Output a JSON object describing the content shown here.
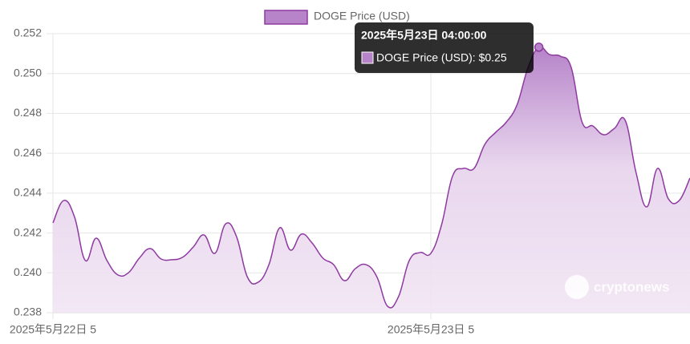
{
  "chart_data": {
    "type": "line",
    "categories": [
      "2025年5月22日 5",
      null,
      null,
      null,
      null,
      null,
      null,
      null,
      null,
      null,
      null,
      null,
      null,
      null,
      null,
      null,
      null,
      null,
      null,
      null,
      null,
      null,
      null,
      null,
      null,
      null,
      null,
      null,
      null,
      null,
      null,
      null,
      null,
      null,
      null,
      "2025年5月23日 5",
      null,
      null,
      null,
      null,
      null,
      null,
      null,
      null,
      null,
      null,
      null,
      null,
      null,
      null,
      null,
      null,
      null,
      null,
      null,
      null,
      null,
      null,
      null,
      null
    ],
    "series": [
      {
        "name": "DOGE Price (USD)",
        "color": "#8e3aa0",
        "values": [
          0.24251,
          0.24363,
          0.2428,
          0.24062,
          0.24174,
          0.24062,
          0.2399,
          0.24001,
          0.24074,
          0.24122,
          0.2407,
          0.24066,
          0.24078,
          0.2413,
          0.2419,
          0.24098,
          0.24246,
          0.24182,
          0.2398,
          0.23953,
          0.24041,
          0.24226,
          0.24114,
          0.24194,
          0.2415,
          0.24074,
          0.24041,
          0.23961,
          0.24021,
          0.24041,
          0.2398,
          0.23832,
          0.2388,
          0.24062,
          0.24102,
          0.24098,
          0.24243,
          0.24484,
          0.24524,
          0.24524,
          0.24645,
          0.24705,
          0.24757,
          0.24846,
          0.2503,
          0.25132,
          0.25095,
          0.25087,
          0.2503,
          0.24757,
          0.24737,
          0.24693,
          0.24725,
          0.24765,
          0.24504,
          0.24331,
          0.24524,
          0.24371,
          0.24363,
          0.24476
        ]
      }
    ],
    "ylim": [
      0.238,
      0.252
    ],
    "yticks": [
      0.238,
      {
        "value": 0.24,
        "label": "0.240"
      },
      0.242,
      0.244,
      0.246,
      0.248,
      {
        "value": 0.25,
        "label": "0.250"
      },
      0.252
    ],
    "grid": true,
    "tooltip": {
      "index": 45,
      "title": "2025年5月23日 04:00:00",
      "label": "DOGE Price (USD): $0.25"
    },
    "watermark": "cryptonews"
  }
}
